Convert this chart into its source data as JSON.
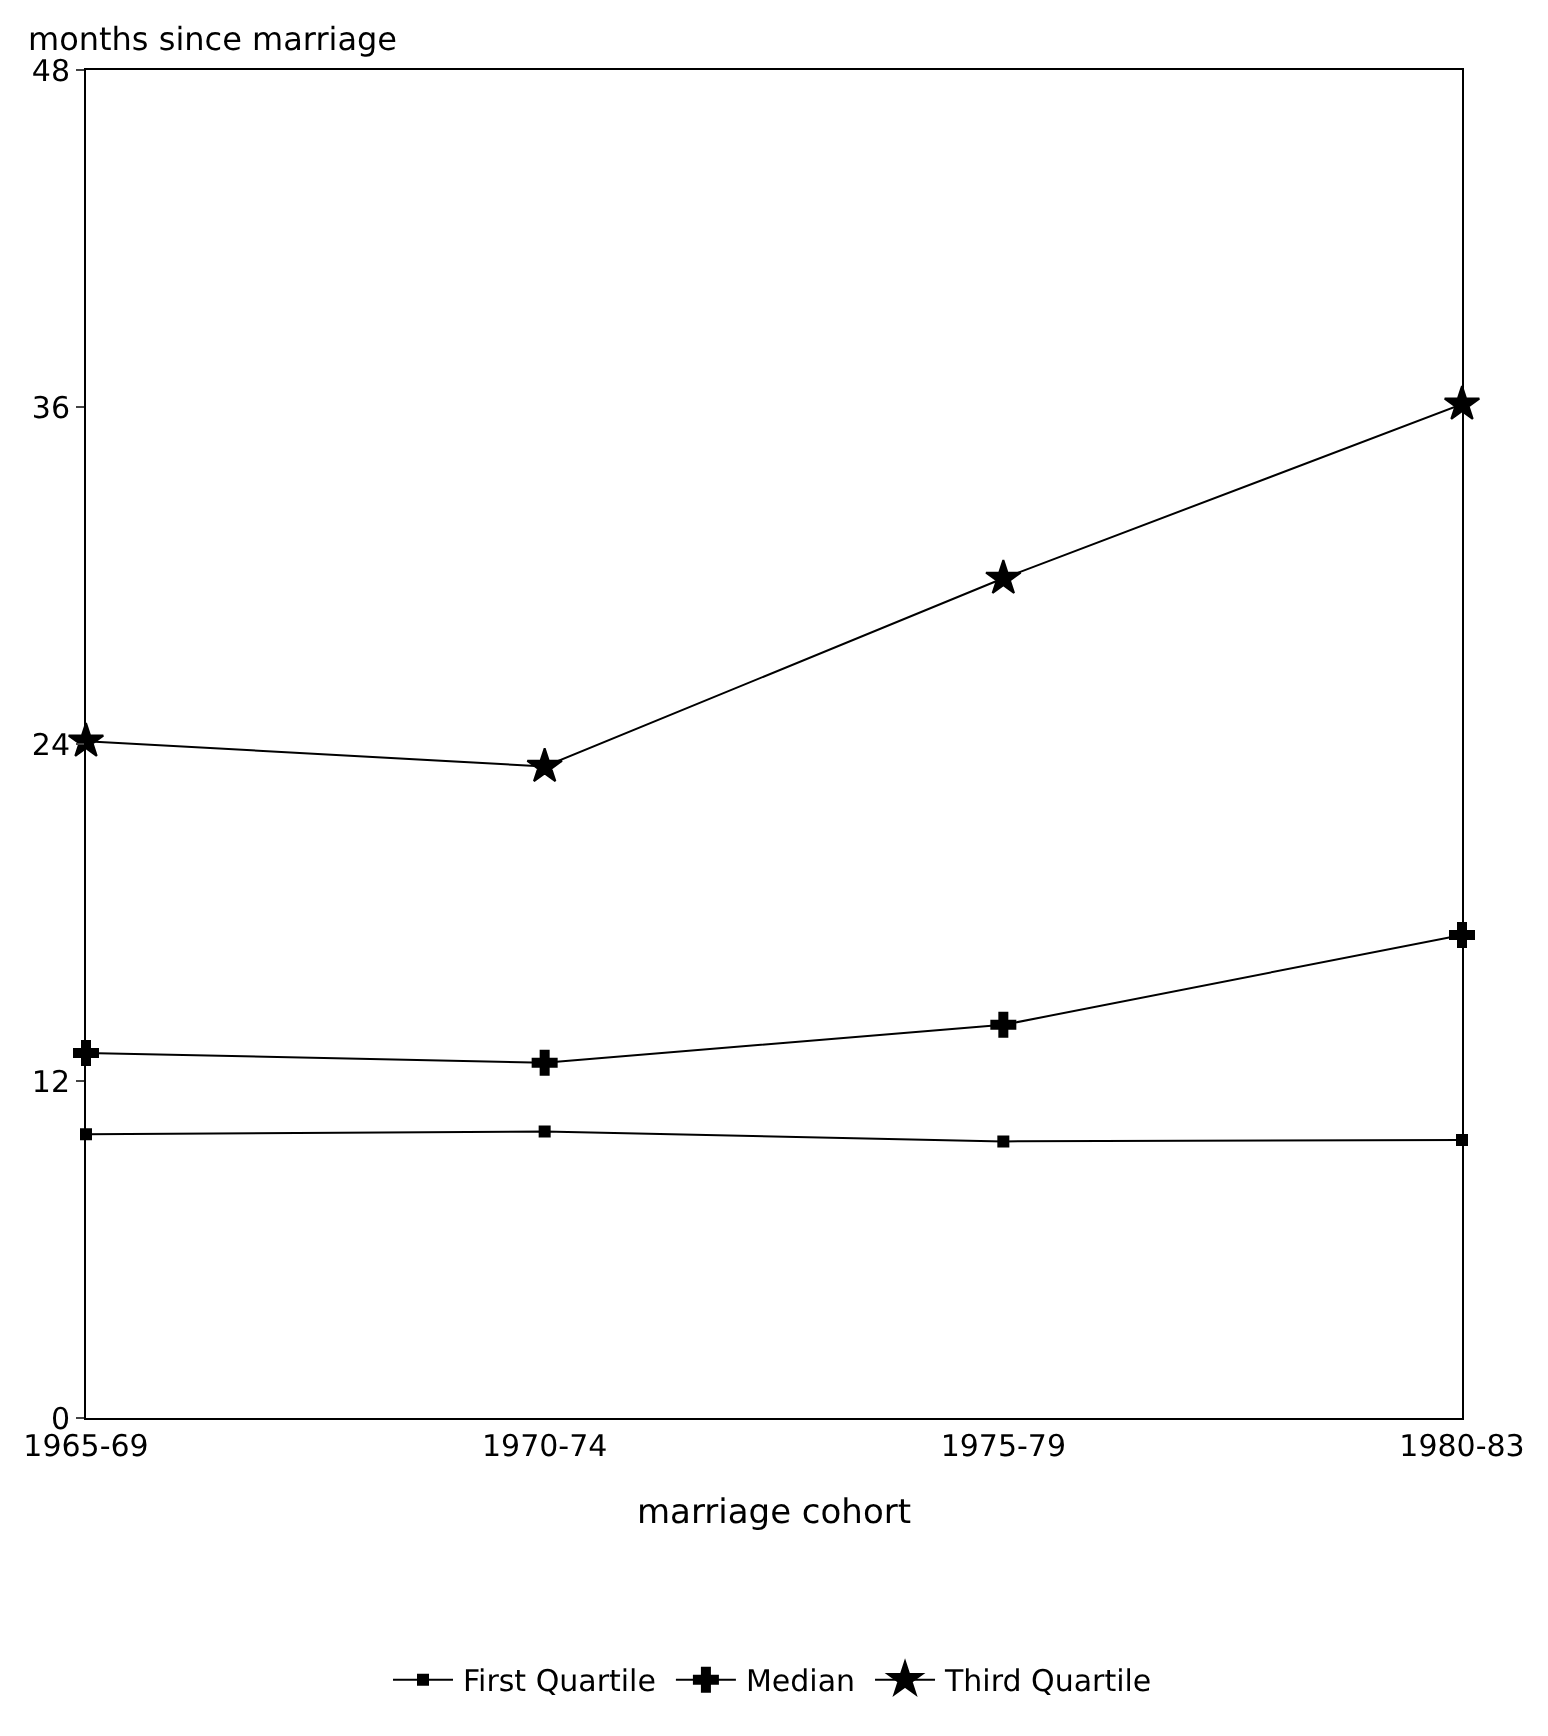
{
  "chart_data": {
    "type": "line",
    "ylabel": "months since marriage",
    "xlabel": "marriage cohort",
    "categories": [
      "1965-69",
      "1970-74",
      "1975-79",
      "1980-83"
    ],
    "series": [
      {
        "name": "First Quartile",
        "color": "#000000",
        "marker": "square",
        "values": [
          10.1,
          10.2,
          9.85,
          9.9
        ]
      },
      {
        "name": "Median",
        "color": "#000000",
        "marker": "cross",
        "values": [
          13.0,
          12.65,
          14.0,
          17.2
        ]
      },
      {
        "name": "Third Quartile",
        "color": "#000000",
        "marker": "star",
        "values": [
          24.1,
          23.2,
          29.9,
          36.1
        ]
      }
    ],
    "ylim": [
      0,
      48
    ],
    "yticks": [
      0,
      12,
      24,
      36,
      48
    ],
    "grid": false,
    "legend": "bottom",
    "line_style": "solid"
  }
}
